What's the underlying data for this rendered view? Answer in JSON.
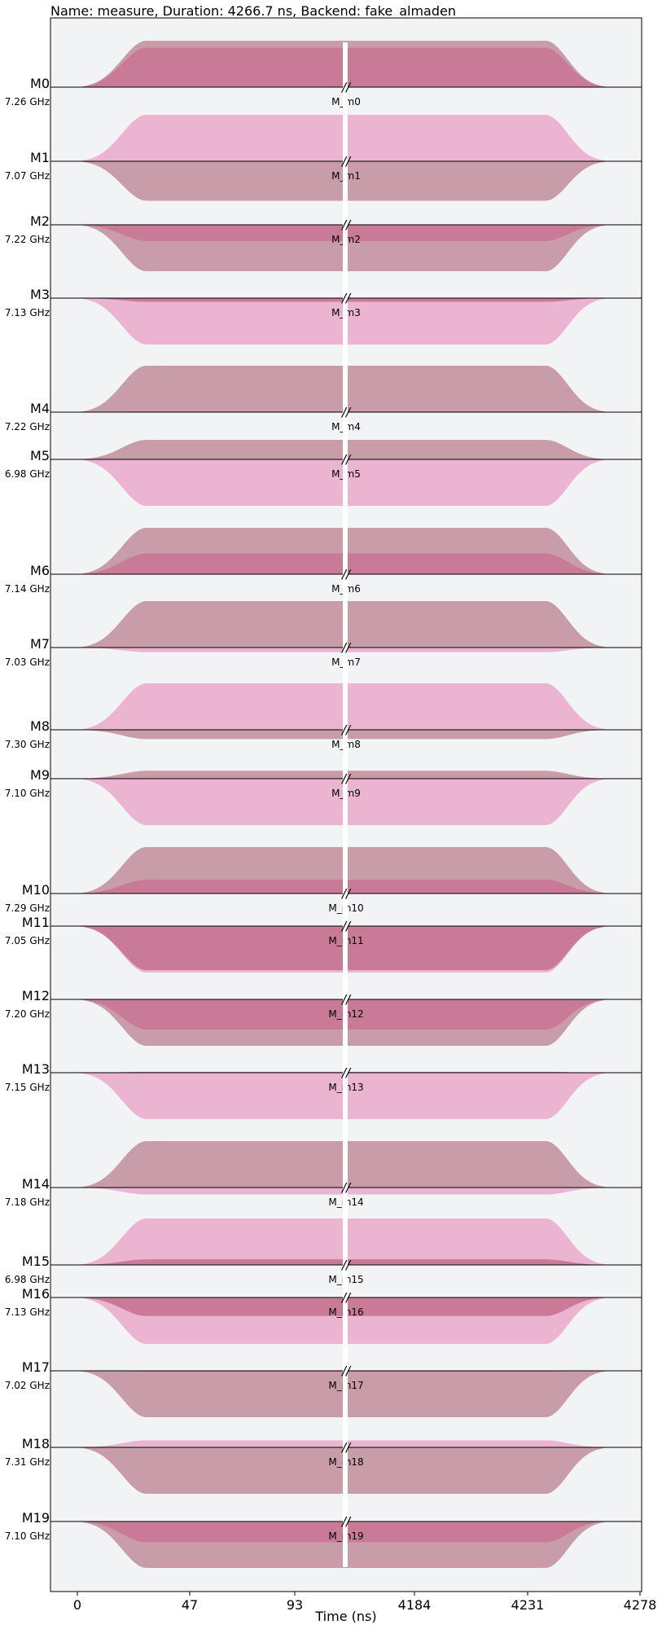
{
  "chart_data": {
    "type": "area",
    "title": "Name: measure, Duration: 4266.7 ns, Backend: fake_almaden",
    "xlabel": "Time (ns)",
    "ylabel": "",
    "x_ticks": [
      "0",
      "47",
      "93",
      "4184",
      "4231",
      "4278"
    ],
    "x_break": "//",
    "grid": false,
    "colors": {
      "background": "#f2f3f5",
      "real": "#ebb4d1",
      "imag": "#c99ca9",
      "overlap": "#c87a97",
      "baseline": "#000000",
      "break": "#ffffff"
    },
    "series_meaning": [
      "real part (pink)",
      "imaginary part (mauve)"
    ],
    "channels": [
      {
        "name": "M0",
        "freq": "7.26 GHz",
        "pulse": "M_m0",
        "re": 0.85,
        "im": 1.0
      },
      {
        "name": "M1",
        "freq": "7.07 GHz",
        "pulse": "M_m1",
        "re": 1.0,
        "im": -0.85
      },
      {
        "name": "M2",
        "freq": "7.22 GHz",
        "pulse": "M_m2",
        "re": -0.35,
        "im": -1.0
      },
      {
        "name": "M3",
        "freq": "7.13 GHz",
        "pulse": "M_m3",
        "re": -1.0,
        "im": -0.08
      },
      {
        "name": "M4",
        "freq": "7.22 GHz",
        "pulse": "M_m4",
        "re": 0.02,
        "im": 1.0
      },
      {
        "name": "M5",
        "freq": "6.98 GHz",
        "pulse": "M_m5",
        "re": -1.0,
        "im": 0.42
      },
      {
        "name": "M6",
        "freq": "7.14 GHz",
        "pulse": "M_m6",
        "re": 0.45,
        "im": 1.0
      },
      {
        "name": "M7",
        "freq": "7.03 GHz",
        "pulse": "M_m7",
        "re": -0.1,
        "im": 1.0
      },
      {
        "name": "M8",
        "freq": "7.30 GHz",
        "pulse": "M_m8",
        "re": 1.0,
        "im": -0.2
      },
      {
        "name": "M9",
        "freq": "7.10 GHz",
        "pulse": "M_m9",
        "re": -1.0,
        "im": 0.17
      },
      {
        "name": "M10",
        "freq": "7.29 GHz",
        "pulse": "M_m10",
        "re": 0.3,
        "im": 1.0
      },
      {
        "name": "M11",
        "freq": "7.05 GHz",
        "pulse": "M_m11",
        "re": -1.0,
        "im": -0.95
      },
      {
        "name": "M12",
        "freq": "7.20 GHz",
        "pulse": "M_m12",
        "re": -0.65,
        "im": -1.0
      },
      {
        "name": "M13",
        "freq": "7.15 GHz",
        "pulse": "M_m13",
        "re": -1.0,
        "im": 0.02
      },
      {
        "name": "M14",
        "freq": "7.18 GHz",
        "pulse": "M_m14",
        "re": -0.15,
        "im": 1.0
      },
      {
        "name": "M15",
        "freq": "6.98 GHz",
        "pulse": "M_m15",
        "re": 1.0,
        "im": 0.12
      },
      {
        "name": "M16",
        "freq": "7.13 GHz",
        "pulse": "M_m16",
        "re": -1.0,
        "im": -0.4
      },
      {
        "name": "M17",
        "freq": "7.02 GHz",
        "pulse": "M_m17",
        "re": -0.02,
        "im": -1.0
      },
      {
        "name": "M18",
        "freq": "7.31 GHz",
        "pulse": "M_m18",
        "re": 0.15,
        "im": -1.0
      },
      {
        "name": "M19",
        "freq": "7.10 GHz",
        "pulse": "M_m19",
        "re": -0.45,
        "im": -1.0
      }
    ]
  }
}
